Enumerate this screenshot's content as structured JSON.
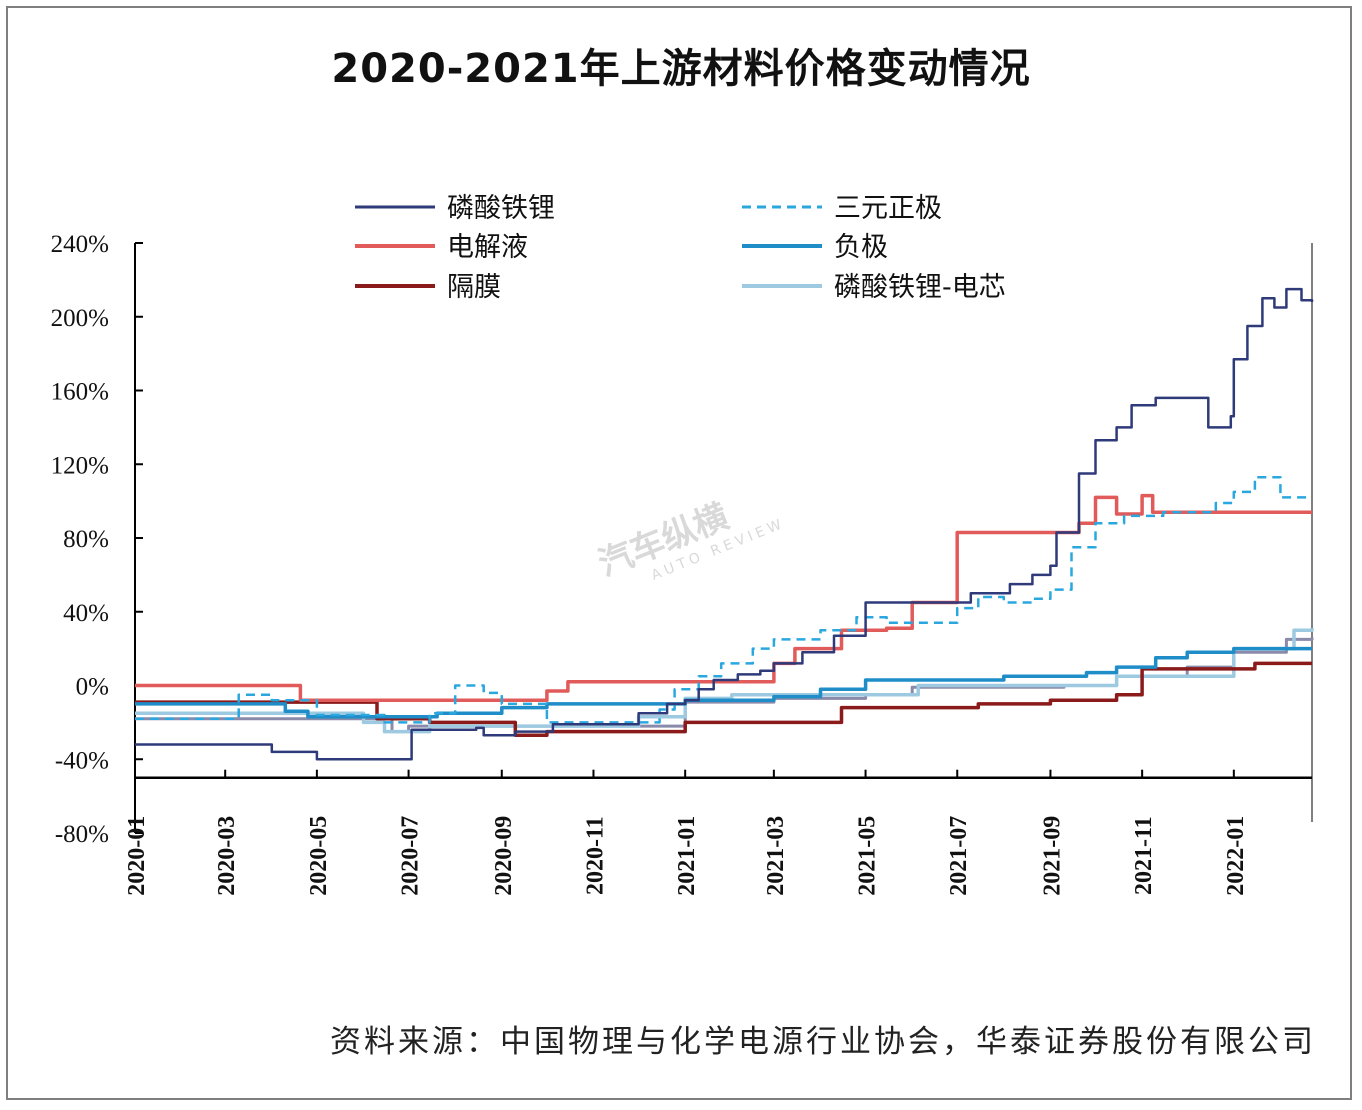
{
  "title": "2020-2021年上游材料价格变动情况",
  "source": "资料来源：中国物理与化学电源行业协会，华泰证券股份有限公司",
  "watermark": {
    "brand": "汽车纵横",
    "sub": "AUTO REVIEW"
  },
  "chart_data": {
    "type": "line",
    "xlabel": "",
    "ylabel": "",
    "ylim": [
      -0.8,
      2.4
    ],
    "xlim": [
      "2020-01-01",
      "2022-02-22"
    ],
    "y_ticks": [
      -0.8,
      -0.4,
      0.0,
      0.4,
      0.8,
      1.2,
      1.6,
      2.0,
      2.4
    ],
    "y_tick_labels": [
      "-80%",
      "-40%",
      "0%",
      "40%",
      "80%",
      "120%",
      "160%",
      "200%",
      "240%"
    ],
    "x_ticks": [
      "2020-01",
      "2020-03",
      "2020-05",
      "2020-07",
      "2020-09",
      "2020-11",
      "2021-01",
      "2021-03",
      "2021-05",
      "2021-07",
      "2021-09",
      "2021-11",
      "2022-01"
    ],
    "legend_position": "top",
    "grid": false,
    "series": [
      {
        "name": "磷酸铁锂",
        "color": "#2e3a7a",
        "dash": "solid",
        "width": 2.5,
        "points": [
          [
            "2020-01-01",
            -0.32
          ],
          [
            "2020-03-20",
            -0.32
          ],
          [
            "2020-04-01",
            -0.36
          ],
          [
            "2020-05-01",
            -0.4
          ],
          [
            "2020-07-01",
            -0.4
          ],
          [
            "2020-07-03",
            -0.24
          ],
          [
            "2020-08-15",
            -0.23
          ],
          [
            "2020-08-20",
            -0.27
          ],
          [
            "2020-09-10",
            -0.25
          ],
          [
            "2020-10-05",
            -0.21
          ],
          [
            "2020-11-10",
            -0.21
          ],
          [
            "2020-12-01",
            -0.15
          ],
          [
            "2020-12-20",
            -0.1
          ],
          [
            "2021-01-01",
            -0.08
          ],
          [
            "2021-01-10",
            -0.02
          ],
          [
            "2021-01-20",
            0.03
          ],
          [
            "2021-02-05",
            0.06
          ],
          [
            "2021-02-20",
            0.08
          ],
          [
            "2021-03-01",
            0.12
          ],
          [
            "2021-03-20",
            0.18
          ],
          [
            "2021-04-10",
            0.27
          ],
          [
            "2021-05-01",
            0.45
          ],
          [
            "2021-06-10",
            0.45
          ],
          [
            "2021-07-10",
            0.5
          ],
          [
            "2021-07-25",
            0.5
          ],
          [
            "2021-08-05",
            0.55
          ],
          [
            "2021-08-20",
            0.6
          ],
          [
            "2021-09-01",
            0.65
          ],
          [
            "2021-09-05",
            0.83
          ],
          [
            "2021-09-20",
            1.15
          ],
          [
            "2021-10-01",
            1.33
          ],
          [
            "2021-10-15",
            1.4
          ],
          [
            "2021-10-25",
            1.52
          ],
          [
            "2021-11-10",
            1.56
          ],
          [
            "2021-11-30",
            1.56
          ],
          [
            "2021-12-15",
            1.4
          ],
          [
            "2021-12-30",
            1.46
          ],
          [
            "2022-01-01",
            1.77
          ],
          [
            "2022-01-10",
            1.95
          ],
          [
            "2022-01-20",
            2.1
          ],
          [
            "2022-01-28",
            2.05
          ],
          [
            "2022-02-05",
            2.15
          ],
          [
            "2022-02-15",
            2.09
          ],
          [
            "2022-02-22",
            2.08
          ]
        ]
      },
      {
        "name": "三元正极",
        "color": "#2aa7df",
        "dash": "dashed",
        "width": 2.5,
        "points": [
          [
            "2020-01-01",
            -0.18
          ],
          [
            "2020-03-01",
            -0.18
          ],
          [
            "2020-03-10",
            -0.05
          ],
          [
            "2020-04-01",
            -0.08
          ],
          [
            "2020-05-01",
            -0.16
          ],
          [
            "2020-06-15",
            -0.2
          ],
          [
            "2020-07-01",
            -0.2
          ],
          [
            "2020-07-15",
            -0.15
          ],
          [
            "2020-08-01",
            0.0
          ],
          [
            "2020-08-20",
            -0.04
          ],
          [
            "2020-09-01",
            -0.1
          ],
          [
            "2020-10-01",
            -0.2
          ],
          [
            "2020-11-01",
            -0.2
          ],
          [
            "2020-12-15",
            -0.13
          ],
          [
            "2020-12-25",
            -0.02
          ],
          [
            "2021-01-10",
            0.05
          ],
          [
            "2021-01-25",
            0.12
          ],
          [
            "2021-02-15",
            0.2
          ],
          [
            "2021-03-01",
            0.25
          ],
          [
            "2021-04-01",
            0.3
          ],
          [
            "2021-04-25",
            0.37
          ],
          [
            "2021-05-15",
            0.34
          ],
          [
            "2021-06-10",
            0.34
          ],
          [
            "2021-07-01",
            0.42
          ],
          [
            "2021-07-15",
            0.48
          ],
          [
            "2021-08-01",
            0.45
          ],
          [
            "2021-08-20",
            0.47
          ],
          [
            "2021-09-01",
            0.52
          ],
          [
            "2021-09-15",
            0.75
          ],
          [
            "2021-10-01",
            0.88
          ],
          [
            "2021-10-20",
            0.92
          ],
          [
            "2021-11-15",
            0.94
          ],
          [
            "2021-12-20",
            0.99
          ],
          [
            "2022-01-01",
            1.05
          ],
          [
            "2022-01-15",
            1.13
          ],
          [
            "2022-02-01",
            1.02
          ],
          [
            "2022-02-22",
            1.02
          ]
        ]
      },
      {
        "name": "电解液",
        "color": "#e15b5b",
        "dash": "solid",
        "width": 3.5,
        "points": [
          [
            "2020-01-01",
            0.0
          ],
          [
            "2020-04-15",
            0.0
          ],
          [
            "2020-04-20",
            -0.08
          ],
          [
            "2020-09-20",
            -0.08
          ],
          [
            "2020-10-01",
            -0.03
          ],
          [
            "2020-10-15",
            0.02
          ],
          [
            "2021-01-15",
            0.02
          ],
          [
            "2021-02-15",
            0.02
          ],
          [
            "2021-03-01",
            0.12
          ],
          [
            "2021-03-15",
            0.2
          ],
          [
            "2021-04-15",
            0.3
          ],
          [
            "2021-05-15",
            0.31
          ],
          [
            "2021-06-01",
            0.45
          ],
          [
            "2021-06-30",
            0.45
          ],
          [
            "2021-07-01",
            0.83
          ],
          [
            "2021-09-05",
            0.83
          ],
          [
            "2021-09-20",
            0.88
          ],
          [
            "2021-10-01",
            1.02
          ],
          [
            "2021-10-15",
            0.93
          ],
          [
            "2021-11-01",
            1.03
          ],
          [
            "2021-11-08",
            0.94
          ],
          [
            "2022-02-22",
            0.94
          ]
        ]
      },
      {
        "name": "负极",
        "color": "#1f8dc7",
        "dash": "solid",
        "width": 3.5,
        "points": [
          [
            "2020-01-01",
            -0.1
          ],
          [
            "2020-04-10",
            -0.14
          ],
          [
            "2020-04-25",
            -0.17
          ],
          [
            "2020-07-01",
            -0.17
          ],
          [
            "2020-07-20",
            -0.15
          ],
          [
            "2020-09-01",
            -0.12
          ],
          [
            "2020-10-01",
            -0.1
          ],
          [
            "2020-12-01",
            -0.1
          ],
          [
            "2021-01-01",
            -0.08
          ],
          [
            "2021-03-01",
            -0.06
          ],
          [
            "2021-04-01",
            -0.02
          ],
          [
            "2021-05-01",
            0.03
          ],
          [
            "2021-07-01",
            0.03
          ],
          [
            "2021-08-01",
            0.05
          ],
          [
            "2021-09-01",
            0.05
          ],
          [
            "2021-09-25",
            0.07
          ],
          [
            "2021-10-15",
            0.1
          ],
          [
            "2021-11-10",
            0.15
          ],
          [
            "2021-12-01",
            0.18
          ],
          [
            "2022-01-01",
            0.2
          ],
          [
            "2022-02-22",
            0.2
          ]
        ]
      },
      {
        "name": "隔膜",
        "color": "#8b1a1a",
        "dash": "solid",
        "width": 3.5,
        "points": [
          [
            "2020-01-01",
            -0.09
          ],
          [
            "2020-04-15",
            -0.09
          ],
          [
            "2020-06-10",
            -0.18
          ],
          [
            "2020-07-15",
            -0.2
          ],
          [
            "2020-09-10",
            -0.27
          ],
          [
            "2020-10-01",
            -0.25
          ],
          [
            "2021-01-01",
            -0.2
          ],
          [
            "2021-04-01",
            -0.2
          ],
          [
            "2021-04-15",
            -0.12
          ],
          [
            "2021-06-01",
            -0.12
          ],
          [
            "2021-07-15",
            -0.1
          ],
          [
            "2021-09-01",
            -0.08
          ],
          [
            "2021-10-15",
            -0.05
          ],
          [
            "2021-11-01",
            0.09
          ],
          [
            "2022-01-15",
            0.12
          ],
          [
            "2022-02-22",
            0.12
          ]
        ]
      },
      {
        "name": "磷酸铁锂-电芯",
        "color": "#9ecae1",
        "dash": "solid",
        "width": 3.5,
        "points": [
          [
            "2020-01-01",
            -0.15
          ],
          [
            "2020-06-01",
            -0.2
          ],
          [
            "2020-06-15",
            -0.25
          ],
          [
            "2020-07-15",
            -0.22
          ],
          [
            "2020-11-01",
            -0.22
          ],
          [
            "2020-12-01",
            -0.17
          ],
          [
            "2021-01-01",
            -0.07
          ],
          [
            "2021-02-01",
            -0.05
          ],
          [
            "2021-05-01",
            -0.05
          ],
          [
            "2021-06-01",
            -0.05
          ],
          [
            "2021-06-05",
            0.0
          ],
          [
            "2021-09-01",
            0.0
          ],
          [
            "2021-10-15",
            0.05
          ],
          [
            "2021-11-10",
            0.05
          ],
          [
            "2021-12-01",
            0.05
          ],
          [
            "2022-01-01",
            0.2
          ],
          [
            "2022-02-10",
            0.3
          ],
          [
            "2022-02-22",
            0.31
          ]
        ]
      },
      {
        "name": "",
        "color": "#8a8aab",
        "dash": "solid",
        "width": 3,
        "points": [
          [
            "2020-01-01",
            -0.18
          ],
          [
            "2020-06-01",
            -0.18
          ],
          [
            "2020-06-20",
            -0.25
          ],
          [
            "2020-07-01",
            -0.22
          ],
          [
            "2021-01-01",
            -0.09
          ],
          [
            "2021-03-01",
            -0.07
          ],
          [
            "2021-05-01",
            -0.05
          ],
          [
            "2021-06-01",
            -0.01
          ],
          [
            "2021-09-10",
            0.0
          ],
          [
            "2021-10-15",
            0.05
          ],
          [
            "2021-12-01",
            0.1
          ],
          [
            "2022-01-01",
            0.18
          ],
          [
            "2022-02-05",
            0.25
          ],
          [
            "2022-02-22",
            0.26
          ]
        ]
      }
    ]
  }
}
